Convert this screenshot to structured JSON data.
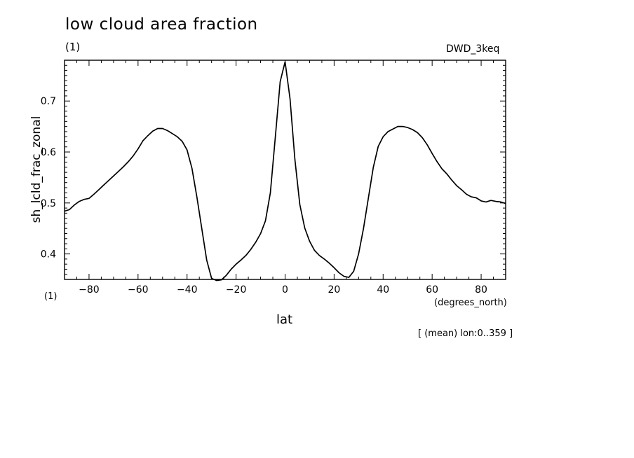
{
  "header": {
    "title": "low cloud area fraction",
    "units_top": "(1)",
    "experiment": "DWD_3keq"
  },
  "footer": {
    "units_corner": "(1)",
    "x_units": "(degrees_north)",
    "x_label": "lat",
    "averaging_note": "[ (mean) lon:0..359 ]"
  },
  "chart_data": {
    "type": "line",
    "title": "low cloud area fraction",
    "xlabel": "lat",
    "ylabel": "sh_lcld_frac_zonal",
    "xlim": [
      -90,
      90
    ],
    "ylim": [
      0.35,
      0.78
    ],
    "xticks": [
      -80,
      -60,
      -40,
      -20,
      0,
      20,
      40,
      60,
      80
    ],
    "yticks": [
      0.4,
      0.5,
      0.6,
      0.7
    ],
    "x": [
      -90,
      -88,
      -86,
      -84,
      -82,
      -80,
      -78,
      -76,
      -74,
      -72,
      -70,
      -68,
      -66,
      -64,
      -62,
      -60,
      -58,
      -56,
      -54,
      -52,
      -50,
      -48,
      -46,
      -44,
      -42,
      -40,
      -38,
      -36,
      -34,
      -32,
      -30,
      -28,
      -26,
      -24,
      -22,
      -20,
      -18,
      -16,
      -14,
      -12,
      -10,
      -8,
      -6,
      -4,
      -2,
      0,
      2,
      4,
      6,
      8,
      10,
      12,
      14,
      16,
      18,
      20,
      22,
      24,
      26,
      28,
      30,
      32,
      34,
      36,
      38,
      40,
      42,
      44,
      46,
      48,
      50,
      52,
      54,
      56,
      58,
      60,
      62,
      64,
      66,
      68,
      70,
      72,
      74,
      76,
      78,
      80,
      82,
      84,
      86,
      88,
      90
    ],
    "y": [
      0.484,
      0.487,
      0.496,
      0.503,
      0.507,
      0.509,
      0.517,
      0.526,
      0.535,
      0.544,
      0.553,
      0.562,
      0.571,
      0.581,
      0.592,
      0.606,
      0.622,
      0.632,
      0.641,
      0.646,
      0.646,
      0.642,
      0.636,
      0.63,
      0.621,
      0.604,
      0.568,
      0.512,
      0.45,
      0.388,
      0.352,
      0.348,
      0.349,
      0.358,
      0.37,
      0.38,
      0.388,
      0.397,
      0.409,
      0.423,
      0.44,
      0.465,
      0.52,
      0.628,
      0.738,
      0.777,
      0.705,
      0.585,
      0.497,
      0.451,
      0.425,
      0.407,
      0.397,
      0.39,
      0.382,
      0.373,
      0.363,
      0.356,
      0.354,
      0.366,
      0.4,
      0.45,
      0.51,
      0.57,
      0.611,
      0.63,
      0.64,
      0.645,
      0.65,
      0.65,
      0.648,
      0.644,
      0.638,
      0.628,
      0.614,
      0.597,
      0.581,
      0.567,
      0.557,
      0.545,
      0.534,
      0.526,
      0.517,
      0.512,
      0.51,
      0.504,
      0.502,
      0.505,
      0.503,
      0.502,
      0.499
    ],
    "grid": false,
    "legend": "none",
    "line_color": "#000000"
  }
}
